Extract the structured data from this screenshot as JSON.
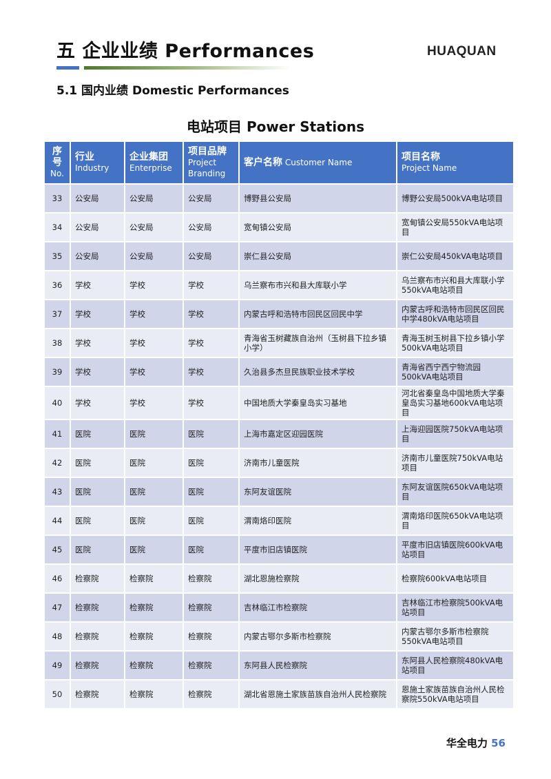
{
  "header": {
    "title": "五  企业业绩   Performances",
    "logo": "HUAQUAN",
    "subtitle": "5.1  国内业绩    Domestic Performances"
  },
  "table": {
    "title": "电站项目    Power Stations",
    "columns": [
      {
        "cn": "序号",
        "en": "No."
      },
      {
        "cn": "行业",
        "en": "Industry"
      },
      {
        "cn": "企业集团",
        "en": "Enterprise"
      },
      {
        "cn": "项目品牌",
        "en": "Project Branding"
      },
      {
        "cn": "客户名称",
        "en": "Customer Name"
      },
      {
        "cn": "项目名称",
        "en": "Project Name"
      }
    ],
    "rows": [
      [
        "33",
        "公安局",
        "公安局",
        "公安局",
        "博野县公安局",
        "博野公安局500kVA电站项目"
      ],
      [
        "34",
        "公安局",
        "公安局",
        "公安局",
        "宽甸镇公安局",
        "宽甸镇公安局550kVA电站项目"
      ],
      [
        "35",
        "公安局",
        "公安局",
        "公安局",
        "崇仁县公安局",
        "崇仁公安局450kVA电站项目"
      ],
      [
        "36",
        "学校",
        "学校",
        "学校",
        "乌兰察布市兴和县大库联小学",
        "乌兰察布市兴和县大库联小学550kVA电站项目"
      ],
      [
        "37",
        "学校",
        "学校",
        "学校",
        "内蒙古呼和浩特市回民区回民中学",
        "内蒙古呼和浩特市回民区回民中学480kVA电站项目"
      ],
      [
        "38",
        "学校",
        "学校",
        "学校",
        "青海省玉树藏族自治州（玉树县下拉乡镇小学）",
        "青海玉树玉树县下拉乡镇小学500kVA电站项目"
      ],
      [
        "39",
        "学校",
        "学校",
        "学校",
        "久治县多杰旦民族职业技术学校",
        "青海省西宁西宁物流园500kVA电站项目"
      ],
      [
        "40",
        "学校",
        "学校",
        "学校",
        "中国地质大学秦皇岛实习基地",
        "河北省秦皇岛中国地质大学秦皇岛实习基地600kVA电站项目"
      ],
      [
        "41",
        "医院",
        "医院",
        "医院",
        "上海市嘉定区迎园医院",
        "上海迎园医院750kVA电站项目"
      ],
      [
        "42",
        "医院",
        "医院",
        "医院",
        "济南市儿童医院",
        "济南市儿童医院750kVA电站项目"
      ],
      [
        "43",
        "医院",
        "医院",
        "医院",
        "东阿友谊医院",
        "东阿友谊医院650kVA电站项目"
      ],
      [
        "44",
        "医院",
        "医院",
        "医院",
        "渭南烙印医院",
        "渭南烙印医院650kVA电站项目"
      ],
      [
        "45",
        "医院",
        "医院",
        "医院",
        "平度市旧店镇医院",
        "平度市旧店镇医院600kVA电站项目"
      ],
      [
        "46",
        "检察院",
        "检察院",
        "检察院",
        "湖北恩施检察院",
        "检察院600kVA电站项目"
      ],
      [
        "47",
        "检察院",
        "检察院",
        "检察院",
        "吉林临江市检察院",
        "吉林临江市检察院500kVA电站项目"
      ],
      [
        "48",
        "检察院",
        "检察院",
        "检察院",
        "内蒙古鄂尔多斯市检察院",
        "内蒙古鄂尔多斯市检察院550kVA电站项目"
      ],
      [
        "49",
        "检察院",
        "检察院",
        "检察院",
        "东阿县人民检察院",
        "东阿县人民检察院480kVA电站项目"
      ],
      [
        "50",
        "检察院",
        "检察院",
        "检察院",
        "湖北省恩施土家族苗族自治州人民检察院",
        "恩施土家族苗族自治州人民检察院550kVA电站项目"
      ]
    ]
  },
  "footer": {
    "brand": "华全电力",
    "page": "56"
  },
  "colors": {
    "accent": "#4472c4",
    "row_odd": "#d0d5ea",
    "row_even": "#e9ebf5"
  }
}
